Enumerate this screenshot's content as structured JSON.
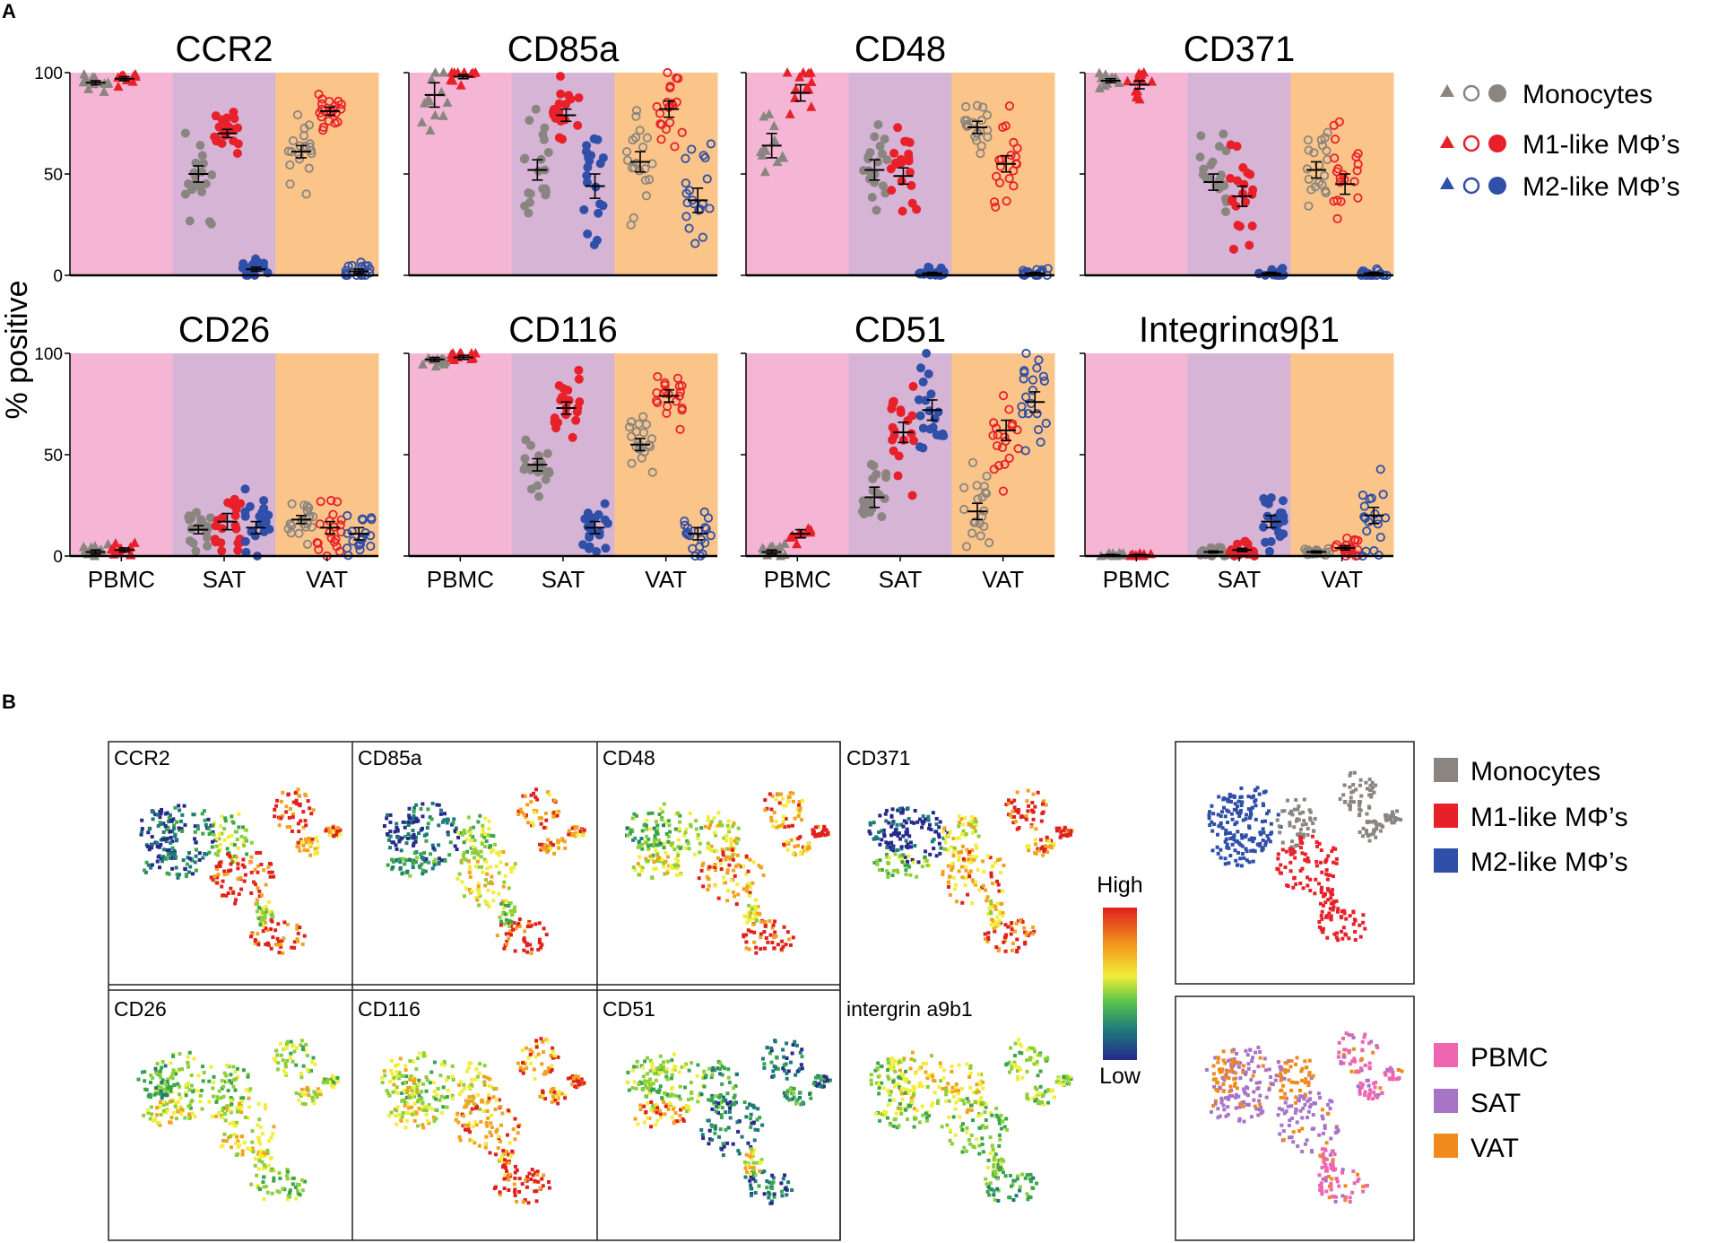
{
  "panel_a_label": "A",
  "panel_b_label": "B",
  "colors": {
    "monocyte": "#8a8580",
    "m1": "#e8202a",
    "m2": "#2f4fa8",
    "bg_pbmc": "#f4b6d4",
    "bg_sat": "#d6b4d6",
    "bg_vat": "#fbc489",
    "pbmc": "#ee66b0",
    "sat": "#a874c6",
    "vat": "#f08a1c"
  },
  "chart_data": {
    "type": "scatter",
    "ylabel": "% positive",
    "ylim": [
      0,
      100
    ],
    "yticks": [
      0,
      50,
      100
    ],
    "categories": [
      "PBMC",
      "SAT",
      "VAT"
    ],
    "marker_legend": "PBMC = triangles, SAT = filled circles, VAT = open circles",
    "legend": [
      {
        "name": "Monocytes",
        "color": "monocyte"
      },
      {
        "name": "M1-like MΦ’s",
        "color": "m1"
      },
      {
        "name": "M2-like MΦ’s",
        "color": "m2"
      }
    ],
    "panels": [
      {
        "title": "CCR2",
        "groups": [
          {
            "tissue": "PBMC",
            "type": "monocyte",
            "mean": 95,
            "sem": 1
          },
          {
            "tissue": "PBMC",
            "type": "m1",
            "mean": 97,
            "sem": 1
          },
          {
            "tissue": "SAT",
            "type": "monocyte",
            "mean": 50,
            "sem": 4
          },
          {
            "tissue": "SAT",
            "type": "m1",
            "mean": 70,
            "sem": 2
          },
          {
            "tissue": "SAT",
            "type": "m2",
            "mean": 3,
            "sem": 1
          },
          {
            "tissue": "VAT",
            "type": "monocyte",
            "mean": 61,
            "sem": 3
          },
          {
            "tissue": "VAT",
            "type": "m1",
            "mean": 81,
            "sem": 2
          },
          {
            "tissue": "VAT",
            "type": "m2",
            "mean": 2,
            "sem": 1
          }
        ]
      },
      {
        "title": "CD85a",
        "groups": [
          {
            "tissue": "PBMC",
            "type": "monocyte",
            "mean": 89,
            "sem": 6
          },
          {
            "tissue": "PBMC",
            "type": "m1",
            "mean": 98,
            "sem": 1
          },
          {
            "tissue": "SAT",
            "type": "monocyte",
            "mean": 52,
            "sem": 5
          },
          {
            "tissue": "SAT",
            "type": "m1",
            "mean": 79,
            "sem": 3
          },
          {
            "tissue": "SAT",
            "type": "m2",
            "mean": 44,
            "sem": 6
          },
          {
            "tissue": "VAT",
            "type": "monocyte",
            "mean": 56,
            "sem": 5
          },
          {
            "tissue": "VAT",
            "type": "m1",
            "mean": 82,
            "sem": 4
          },
          {
            "tissue": "VAT",
            "type": "m2",
            "mean": 37,
            "sem": 6
          }
        ]
      },
      {
        "title": "CD48",
        "groups": [
          {
            "tissue": "PBMC",
            "type": "monocyte",
            "mean": 64,
            "sem": 6
          },
          {
            "tissue": "PBMC",
            "type": "m1",
            "mean": 90,
            "sem": 4
          },
          {
            "tissue": "SAT",
            "type": "monocyte",
            "mean": 52,
            "sem": 5
          },
          {
            "tissue": "SAT",
            "type": "m1",
            "mean": 49,
            "sem": 4
          },
          {
            "tissue": "SAT",
            "type": "m2",
            "mean": 1,
            "sem": 0.5
          },
          {
            "tissue": "VAT",
            "type": "monocyte",
            "mean": 73,
            "sem": 3
          },
          {
            "tissue": "VAT",
            "type": "m1",
            "mean": 55,
            "sem": 4
          },
          {
            "tissue": "VAT",
            "type": "m2",
            "mean": 1,
            "sem": 0.5
          }
        ]
      },
      {
        "title": "CD371",
        "groups": [
          {
            "tissue": "PBMC",
            "type": "monocyte",
            "mean": 96,
            "sem": 1
          },
          {
            "tissue": "PBMC",
            "type": "m1",
            "mean": 94,
            "sem": 2
          },
          {
            "tissue": "SAT",
            "type": "monocyte",
            "mean": 46,
            "sem": 4
          },
          {
            "tissue": "SAT",
            "type": "m1",
            "mean": 39,
            "sem": 5
          },
          {
            "tissue": "SAT",
            "type": "m2",
            "mean": 1,
            "sem": 0.5
          },
          {
            "tissue": "VAT",
            "type": "monocyte",
            "mean": 52,
            "sem": 4
          },
          {
            "tissue": "VAT",
            "type": "m1",
            "mean": 45,
            "sem": 5
          },
          {
            "tissue": "VAT",
            "type": "m2",
            "mean": 1,
            "sem": 0.5
          }
        ]
      },
      {
        "title": "CD26",
        "groups": [
          {
            "tissue": "PBMC",
            "type": "monocyte",
            "mean": 2,
            "sem": 1
          },
          {
            "tissue": "PBMC",
            "type": "m1",
            "mean": 3,
            "sem": 1
          },
          {
            "tissue": "SAT",
            "type": "monocyte",
            "mean": 13,
            "sem": 2
          },
          {
            "tissue": "SAT",
            "type": "m1",
            "mean": 17,
            "sem": 4
          },
          {
            "tissue": "SAT",
            "type": "m2",
            "mean": 14,
            "sem": 3
          },
          {
            "tissue": "VAT",
            "type": "monocyte",
            "mean": 18,
            "sem": 2
          },
          {
            "tissue": "VAT",
            "type": "m1",
            "mean": 14,
            "sem": 3
          },
          {
            "tissue": "VAT",
            "type": "m2",
            "mean": 11,
            "sem": 3
          }
        ]
      },
      {
        "title": "CD116",
        "groups": [
          {
            "tissue": "PBMC",
            "type": "monocyte",
            "mean": 97,
            "sem": 1
          },
          {
            "tissue": "PBMC",
            "type": "m1",
            "mean": 98,
            "sem": 1
          },
          {
            "tissue": "SAT",
            "type": "monocyte",
            "mean": 45,
            "sem": 3
          },
          {
            "tissue": "SAT",
            "type": "m1",
            "mean": 73,
            "sem": 3
          },
          {
            "tissue": "SAT",
            "type": "m2",
            "mean": 14,
            "sem": 3
          },
          {
            "tissue": "VAT",
            "type": "monocyte",
            "mean": 55,
            "sem": 3
          },
          {
            "tissue": "VAT",
            "type": "m1",
            "mean": 79,
            "sem": 3
          },
          {
            "tissue": "VAT",
            "type": "m2",
            "mean": 11,
            "sem": 3
          }
        ]
      },
      {
        "title": "CD51",
        "groups": [
          {
            "tissue": "PBMC",
            "type": "monocyte",
            "mean": 2,
            "sem": 1
          },
          {
            "tissue": "PBMC",
            "type": "m1",
            "mean": 11,
            "sem": 2
          },
          {
            "tissue": "SAT",
            "type": "monocyte",
            "mean": 29,
            "sem": 5
          },
          {
            "tissue": "SAT",
            "type": "m1",
            "mean": 61,
            "sem": 5
          },
          {
            "tissue": "SAT",
            "type": "m2",
            "mean": 72,
            "sem": 5
          },
          {
            "tissue": "VAT",
            "type": "monocyte",
            "mean": 22,
            "sem": 4
          },
          {
            "tissue": "VAT",
            "type": "m1",
            "mean": 62,
            "sem": 5
          },
          {
            "tissue": "VAT",
            "type": "m2",
            "mean": 76,
            "sem": 5
          }
        ]
      },
      {
        "title": "Integrinα9β1",
        "groups": [
          {
            "tissue": "PBMC",
            "type": "monocyte",
            "mean": 0.5,
            "sem": 0.3
          },
          {
            "tissue": "PBMC",
            "type": "m1",
            "mean": 0.5,
            "sem": 0.3
          },
          {
            "tissue": "SAT",
            "type": "monocyte",
            "mean": 2,
            "sem": 0.5
          },
          {
            "tissue": "SAT",
            "type": "m1",
            "mean": 3,
            "sem": 0.8
          },
          {
            "tissue": "SAT",
            "type": "m2",
            "mean": 17,
            "sem": 3
          },
          {
            "tissue": "VAT",
            "type": "monocyte",
            "mean": 2,
            "sem": 0.5
          },
          {
            "tissue": "VAT",
            "type": "m1",
            "mean": 4,
            "sem": 1
          },
          {
            "tissue": "VAT",
            "type": "m2",
            "mean": 20,
            "sem": 4
          }
        ]
      }
    ]
  },
  "tsne": {
    "markers": [
      "CCR2",
      "CD85a",
      "CD48",
      "CD371",
      "CD26",
      "CD116",
      "CD51",
      "intergrin a9b1"
    ],
    "scale": {
      "high": "High",
      "low": "Low"
    },
    "cell_legend": [
      "Monocytes",
      "M1-like MΦ’s",
      "M2-like MΦ’s"
    ],
    "tissue_legend": [
      "PBMC",
      "SAT",
      "VAT"
    ]
  }
}
